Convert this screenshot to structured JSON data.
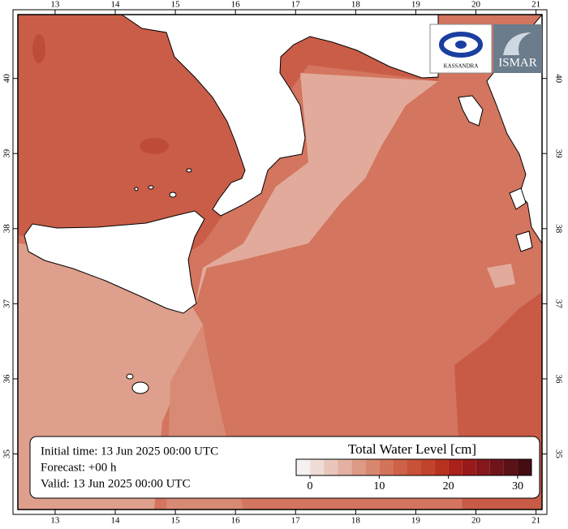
{
  "map": {
    "lon_ticks": [
      13,
      14,
      15,
      16,
      17,
      18,
      19,
      20,
      21
    ],
    "lat_ticks": [
      35,
      36,
      37,
      38,
      39,
      40
    ],
    "lon_range": [
      12.38,
      21.1
    ],
    "lat_range": [
      34.26,
      40.85
    ],
    "logos": [
      "KASSANDRA",
      "ISMAR"
    ],
    "info": [
      "Initial time: 13 Jun 2025 00:00 UTC",
      "Forecast: +00 h",
      "Valid: 13 Jun 2025 00:00 UTC"
    ],
    "colorbar": {
      "title": "Total Water Level [cm]",
      "bins": [
        -2,
        0,
        2,
        4,
        6,
        8,
        10,
        12,
        14,
        16,
        18,
        20,
        22,
        24,
        26,
        28,
        30,
        32
      ],
      "colors": [
        "#f4f1f0",
        "#efdcd6",
        "#e9c6bb",
        "#e3b0a1",
        "#dd9a87",
        "#d8876f",
        "#d3735a",
        "#cd6248",
        "#c85238",
        "#c2432b",
        "#b7321f",
        "#a92119",
        "#981a1a",
        "#84171b",
        "#6f141a",
        "#5a1117",
        "#450d12"
      ],
      "ticks": [
        0,
        10,
        20,
        30
      ]
    }
  }
}
